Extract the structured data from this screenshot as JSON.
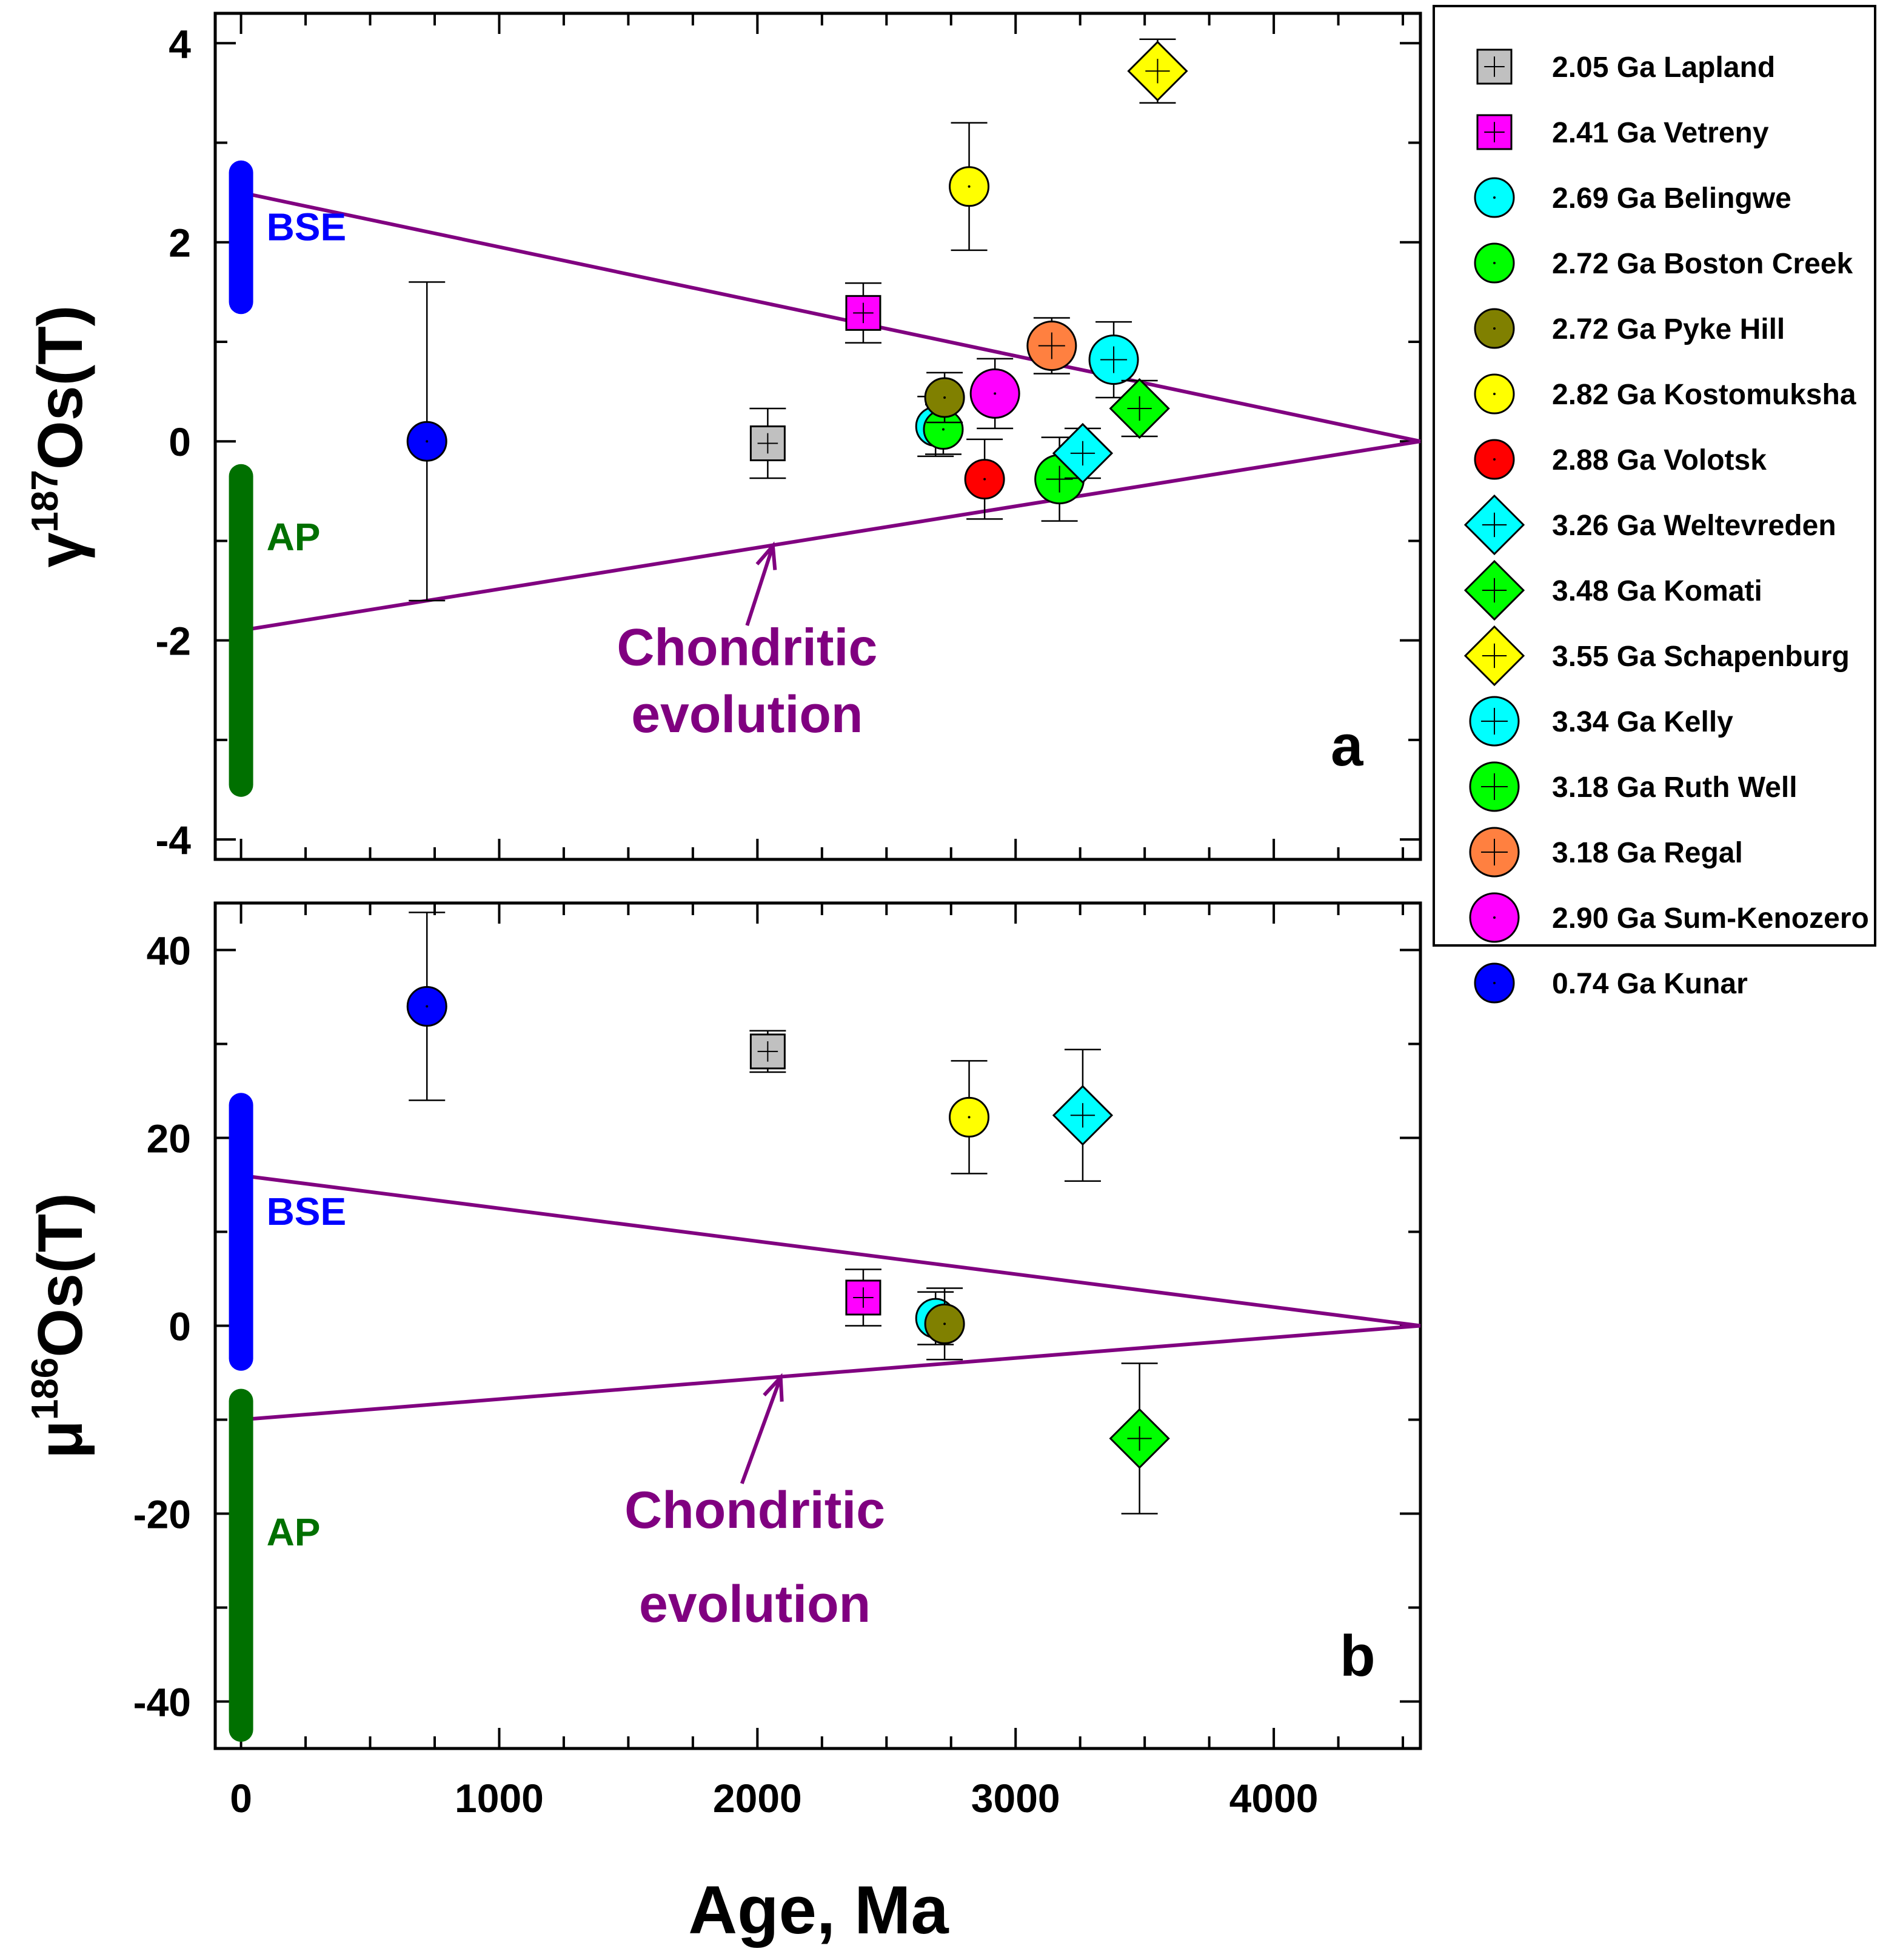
{
  "figure": {
    "xlabel": "Age, Ma",
    "x_ticks": [
      "0",
      "1000",
      "2000",
      "3000",
      "4000"
    ],
    "evolution_color": "#800080",
    "bse_color": "#0000ff",
    "ap_color": "#007000"
  },
  "legend": {
    "items": [
      {
        "label": "2.05 Ga Lapland",
        "shape": "square",
        "color": "#c0c0c0",
        "size": "small",
        "cross": true
      },
      {
        "label": "2.41 Ga Vetreny",
        "shape": "square",
        "color": "#ff00ff",
        "size": "small",
        "cross": true
      },
      {
        "label": "2.69 Ga Belingwe",
        "shape": "circle",
        "color": "#00ffff",
        "size": "small",
        "cross": false
      },
      {
        "label": "2.72 Ga Boston Creek",
        "shape": "circle",
        "color": "#00ff00",
        "size": "small",
        "cross": false
      },
      {
        "label": "2.72 Ga Pyke Hill",
        "shape": "circle",
        "color": "#808000",
        "size": "small",
        "cross": false
      },
      {
        "label": "2.82 Ga Kostomuksha",
        "shape": "circle",
        "color": "#ffff00",
        "size": "small",
        "cross": false
      },
      {
        "label": "2.88 Ga Volotsk",
        "shape": "circle",
        "color": "#ff0000",
        "size": "small",
        "cross": false
      },
      {
        "label": "3.26 Ga Weltevreden",
        "shape": "diamond",
        "color": "#00ffff",
        "size": "large",
        "cross": true
      },
      {
        "label": "3.48 Ga Komati",
        "shape": "diamond",
        "color": "#00ff00",
        "size": "large",
        "cross": true
      },
      {
        "label": "3.55 Ga Schapenburg",
        "shape": "diamond",
        "color": "#ffff00",
        "size": "large",
        "cross": true
      },
      {
        "label": "3.34 Ga Kelly",
        "shape": "circle",
        "color": "#00ffff",
        "size": "large",
        "cross": true
      },
      {
        "label": "3.18 Ga Ruth Well",
        "shape": "circle",
        "color": "#00ff00",
        "size": "large",
        "cross": true
      },
      {
        "label": "3.18 Ga Regal",
        "shape": "circle",
        "color": "#ff8040",
        "size": "large",
        "cross": true
      },
      {
        "label": "2.90 Ga Sum-Kenozero",
        "shape": "circle",
        "color": "#ff00ff",
        "size": "large",
        "cross": false
      },
      {
        "label": "0.74 Ga Kunar",
        "shape": "circle",
        "color": "#0000ff",
        "size": "small",
        "cross": false
      }
    ]
  },
  "chart_data": [
    {
      "type": "scatter",
      "panel": "a",
      "ylabel_main": "γ",
      "ylabel_sup": "187",
      "ylabel_rest": "Os(T)",
      "xlim": [
        -100,
        4568
      ],
      "ylim": [
        -4.2,
        4.3
      ],
      "y_ticks": [
        {
          "value": 4,
          "label": "4"
        },
        {
          "value": 2,
          "label": "2"
        },
        {
          "value": 0,
          "label": "0"
        },
        {
          "value": -2,
          "label": "-2"
        },
        {
          "value": -4,
          "label": "-4"
        }
      ],
      "evolution": {
        "start_upper": 2.5,
        "start_lower": -1.9,
        "end_age": 4568,
        "end_value": 0
      },
      "ranges": [
        {
          "label": "BSE",
          "color": "#0000ff",
          "ymin": 1.4,
          "ymax": 2.7
        },
        {
          "label": "AP",
          "color": "#007000",
          "ymin": -3.45,
          "ymax": -0.35
        }
      ],
      "annotation": {
        "line1": "Chondritic",
        "line2": "evolution",
        "arrow_tail": [
          1960,
          -1.85
        ],
        "arrow_head": [
          2060,
          -1.05
        ],
        "text_age": 1960,
        "text_y1": -2.25,
        "text_y2": -2.92
      },
      "points": [
        {
          "name": "0.74 Ga Kunar",
          "age": 720,
          "value": 0.0,
          "err": 1.6,
          "shape": "circle",
          "color": "#0000ff",
          "size": "small",
          "cross": false
        },
        {
          "name": "2.05 Ga Lapland",
          "age": 2040,
          "value": -0.02,
          "err": 0.35,
          "shape": "square",
          "color": "#c0c0c0",
          "size": "small",
          "cross": true
        },
        {
          "name": "2.41 Ga Vetreny",
          "age": 2410,
          "value": 1.29,
          "err": 0.3,
          "shape": "square",
          "color": "#ff00ff",
          "size": "small",
          "cross": true
        },
        {
          "name": "2.69 Ga Belingwe",
          "age": 2690,
          "value": 0.15,
          "err": 0.3,
          "shape": "circle",
          "color": "#00ffff",
          "size": "small",
          "cross": false
        },
        {
          "name": "2.72 Ga Boston Creek",
          "age": 2720,
          "value": 0.12,
          "err": 0.25,
          "shape": "circle",
          "color": "#00ff00",
          "size": "small",
          "cross": false
        },
        {
          "name": "2.72 Ga Pyke Hill",
          "age": 2725,
          "value": 0.44,
          "err": 0.25,
          "shape": "circle",
          "color": "#808000",
          "size": "small",
          "cross": false
        },
        {
          "name": "2.82 Ga Kostomuksha",
          "age": 2820,
          "value": 2.56,
          "err": 0.64,
          "shape": "circle",
          "color": "#ffff00",
          "size": "small",
          "cross": false
        },
        {
          "name": "2.88 Ga Volotsk",
          "age": 2880,
          "value": -0.38,
          "err": 0.4,
          "shape": "circle",
          "color": "#ff0000",
          "size": "small",
          "cross": false
        },
        {
          "name": "2.90 Ga Sum-Kenozero",
          "age": 2920,
          "value": 0.48,
          "err": 0.35,
          "shape": "circle",
          "color": "#ff00ff",
          "size": "large",
          "cross": false
        },
        {
          "name": "3.18 Ga Regal",
          "age": 3140,
          "value": 0.96,
          "err": 0.28,
          "shape": "circle",
          "color": "#ff8040",
          "size": "large",
          "cross": true
        },
        {
          "name": "3.18 Ga Ruth Well",
          "age": 3170,
          "value": -0.38,
          "err": 0.42,
          "shape": "circle",
          "color": "#00ff00",
          "size": "large",
          "cross": true
        },
        {
          "name": "3.26 Ga Weltevreden",
          "age": 3260,
          "value": -0.12,
          "err": 0.25,
          "shape": "diamond",
          "color": "#00ffff",
          "size": "large",
          "cross": true
        },
        {
          "name": "3.34 Ga Kelly",
          "age": 3380,
          "value": 0.82,
          "err": 0.38,
          "shape": "circle",
          "color": "#00ffff",
          "size": "large",
          "cross": true
        },
        {
          "name": "3.48 Ga Komati",
          "age": 3480,
          "value": 0.33,
          "err": 0.28,
          "shape": "diamond",
          "color": "#00ff00",
          "size": "large",
          "cross": true
        },
        {
          "name": "3.55 Ga Schapenburg",
          "age": 3550,
          "value": 3.72,
          "err": 0.32,
          "shape": "diamond",
          "color": "#ffff00",
          "size": "large",
          "cross": true
        }
      ]
    },
    {
      "type": "scatter",
      "panel": "b",
      "ylabel_main": "μ",
      "ylabel_sup": "186",
      "ylabel_rest": "Os(T)",
      "xlim": [
        -100,
        4568
      ],
      "ylim": [
        -45,
        45
      ],
      "y_ticks": [
        {
          "value": 40,
          "label": "40"
        },
        {
          "value": 20,
          "label": "20"
        },
        {
          "value": 0,
          "label": "0"
        },
        {
          "value": -20,
          "label": "-20"
        },
        {
          "value": -40,
          "label": "-40"
        }
      ],
      "evolution": {
        "start_upper": 16,
        "start_lower": -10,
        "end_age": 4568,
        "end_value": 0
      },
      "ranges": [
        {
          "label": "BSE",
          "color": "#0000ff",
          "ymin": -3.5,
          "ymax": 23.5
        },
        {
          "label": "AP",
          "color": "#007000",
          "ymin": -43,
          "ymax": -8
        }
      ],
      "annotation": {
        "line1": "Chondritic",
        "line2": "evolution",
        "arrow_tail": [
          1940,
          -16.8
        ],
        "arrow_head": [
          2090,
          -5.5
        ],
        "text_age": 1990,
        "text_y1": -21.5,
        "text_y2": -31.5
      },
      "points": [
        {
          "name": "0.74 Ga Kunar",
          "age": 720,
          "value": 34,
          "err": 10,
          "shape": "circle",
          "color": "#0000ff",
          "size": "small",
          "cross": false
        },
        {
          "name": "2.05 Ga Lapland",
          "age": 2040,
          "value": 29.2,
          "err": 2.2,
          "shape": "square",
          "color": "#c0c0c0",
          "size": "small",
          "cross": true
        },
        {
          "name": "2.41 Ga Vetreny",
          "age": 2410,
          "value": 3,
          "err": 3,
          "shape": "square",
          "color": "#ff00ff",
          "size": "small",
          "cross": true
        },
        {
          "name": "2.69 Ga Belingwe",
          "age": 2690,
          "value": 0.8,
          "err": 2.8,
          "shape": "circle",
          "color": "#00ffff",
          "size": "small",
          "cross": false
        },
        {
          "name": "2.72 Ga Pyke Hill",
          "age": 2725,
          "value": 0.2,
          "err": 3.8,
          "shape": "circle",
          "color": "#808000",
          "size": "small",
          "cross": false
        },
        {
          "name": "2.82 Ga Kostomuksha",
          "age": 2820,
          "value": 22.2,
          "err": 6,
          "shape": "circle",
          "color": "#ffff00",
          "size": "small",
          "cross": false
        },
        {
          "name": "3.26 Ga Weltevreden",
          "age": 3260,
          "value": 22.4,
          "err": 7,
          "shape": "diamond",
          "color": "#00ffff",
          "size": "large",
          "cross": true
        },
        {
          "name": "3.48 Ga Komati",
          "age": 3480,
          "value": -12,
          "err": 8,
          "shape": "diamond",
          "color": "#00ff00",
          "size": "large",
          "cross": true
        }
      ]
    }
  ]
}
